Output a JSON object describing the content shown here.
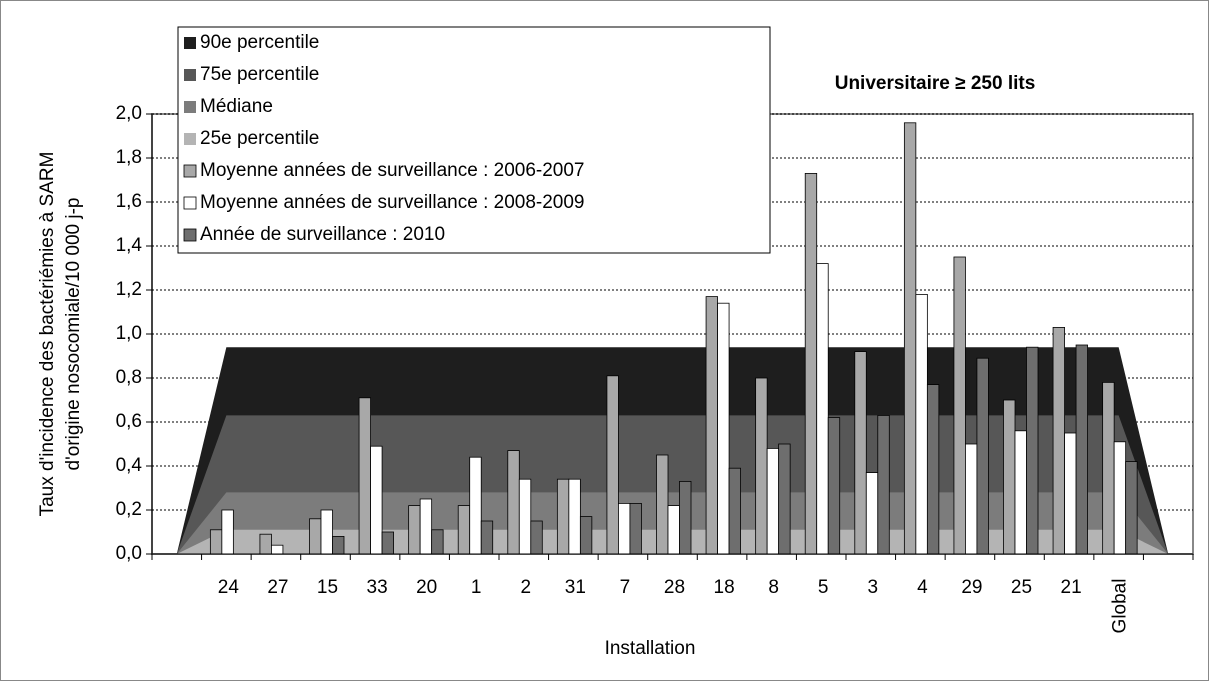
{
  "chart_data": {
    "type": "bar",
    "title": "Universitaire ≥ 250 lits",
    "x_label": "Installation",
    "y_label": [
      "Taux d'incidence des bactériémies à SARM",
      "d'origine nosocomiale/10 000 j-p"
    ],
    "categories": [
      null,
      "24",
      "27",
      "15",
      "33",
      "20",
      "1",
      "2",
      "31",
      "7",
      "28",
      "18",
      "8",
      "5",
      "3",
      "4",
      "29",
      "25",
      "21",
      "Global",
      null
    ],
    "ylim": [
      0,
      2
    ],
    "yticks": [
      {
        "value": 0,
        "label": "0,0"
      },
      {
        "value": 0.2,
        "label": "0,2"
      },
      {
        "value": 0.4,
        "label": "0,4"
      },
      {
        "value": 0.6,
        "label": "0,6"
      },
      {
        "value": 0.8,
        "label": "0,8"
      },
      {
        "value": 1,
        "label": "1,0"
      },
      {
        "value": 1.2,
        "label": "1,2"
      },
      {
        "value": 1.4,
        "label": "1,4"
      },
      {
        "value": 1.6,
        "label": "1,6"
      },
      {
        "value": 1.8,
        "label": "1,8"
      },
      {
        "value": 2,
        "label": "2,0"
      }
    ],
    "grid": true,
    "areas": [
      {
        "name": "90e percentile",
        "color": "#1e1e1e",
        "values": [
          0,
          0.94,
          0.94,
          0.94,
          0.94,
          0.94,
          0.94,
          0.94,
          0.94,
          0.94,
          0.94,
          0.94,
          0.94,
          0.94,
          0.94,
          0.94,
          0.94,
          0.94,
          0.94,
          0.94,
          0
        ]
      },
      {
        "name": "75e percentile",
        "color": "#575757",
        "values": [
          0,
          0.63,
          0.63,
          0.63,
          0.63,
          0.63,
          0.63,
          0.63,
          0.63,
          0.63,
          0.63,
          0.63,
          0.63,
          0.63,
          0.63,
          0.63,
          0.63,
          0.63,
          0.63,
          0.63,
          0
        ]
      },
      {
        "name": "Médiane",
        "color": "#7c7c7c",
        "values": [
          0,
          0.28,
          0.28,
          0.28,
          0.28,
          0.28,
          0.28,
          0.28,
          0.28,
          0.28,
          0.28,
          0.28,
          0.28,
          0.28,
          0.28,
          0.28,
          0.28,
          0.28,
          0.28,
          0.28,
          0
        ]
      },
      {
        "name": "25e percentile",
        "color": "#b4b4b4",
        "values": [
          0,
          0.11,
          0.11,
          0.11,
          0.11,
          0.11,
          0.11,
          0.11,
          0.11,
          0.11,
          0.11,
          0.11,
          0.11,
          0.11,
          0.11,
          0.11,
          0.11,
          0.11,
          0.11,
          0.11,
          0
        ]
      }
    ],
    "series": [
      {
        "name": "Moyenne années de surveillance : 2006-2007",
        "color": "#a8a8a8",
        "values": [
          null,
          0.11,
          0.09,
          0.16,
          0.71,
          0.22,
          0.22,
          0.47,
          0.34,
          0.81,
          0.45,
          1.17,
          0.8,
          1.73,
          0.92,
          1.96,
          1.35,
          0.7,
          1.03,
          0.78,
          null
        ]
      },
      {
        "name": "Moyenne années de surveillance : 2008-2009",
        "color": "#ffffff",
        "values": [
          null,
          0.2,
          0.04,
          0.2,
          0.49,
          0.25,
          0.44,
          0.34,
          0.34,
          0.23,
          0.22,
          1.14,
          0.48,
          1.32,
          0.37,
          1.18,
          0.5,
          0.56,
          0.55,
          0.51,
          null
        ]
      },
      {
        "name": "Année de surveillance : 2010",
        "color": "#6e6e6e",
        "values": [
          null,
          null,
          null,
          0.08,
          0.1,
          0.11,
          0.15,
          0.15,
          0.17,
          0.23,
          0.33,
          0.39,
          0.5,
          0.62,
          0.63,
          0.77,
          0.89,
          0.94,
          0.95,
          0.42,
          null
        ]
      }
    ]
  }
}
